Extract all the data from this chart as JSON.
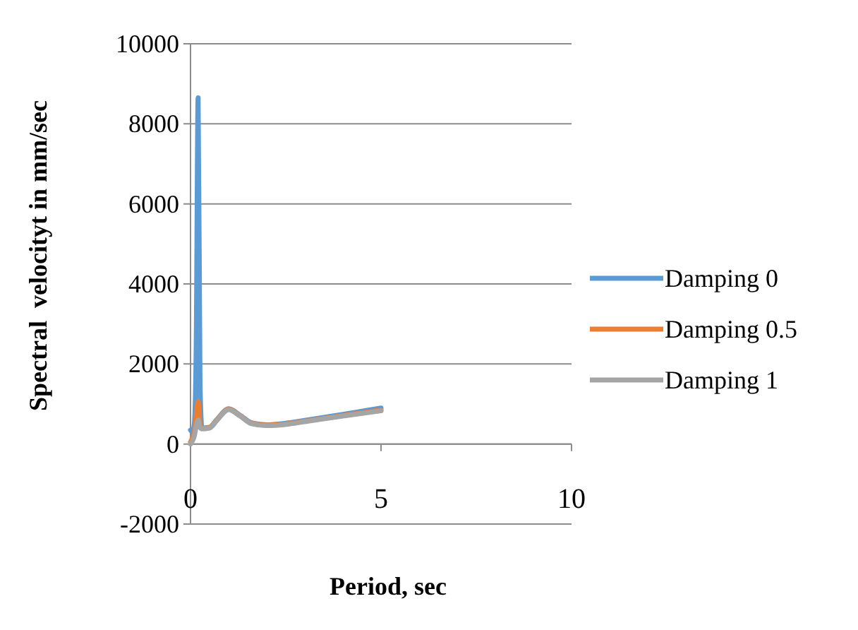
{
  "chart_data": {
    "type": "line",
    "xlabel": "Period, sec",
    "ylabel": "Spectral  velocityt in mm/sec",
    "xlim": [
      0,
      10
    ],
    "xticks": [
      0,
      5,
      10
    ],
    "ylim": [
      -2000,
      10000
    ],
    "yticks": [
      -2000,
      0,
      2000,
      4000,
      6000,
      8000,
      10000
    ],
    "grid": "y",
    "legend": "right",
    "marker": "none",
    "line_style": "solid",
    "series": [
      {
        "name": "Damping 0",
        "color": "#5b9bd5",
        "x": [
          0,
          0.05,
          0.1,
          0.15,
          0.2,
          0.25,
          0.3,
          0.5,
          0.7,
          1.0,
          1.3,
          1.6,
          2.0,
          2.5,
          3,
          4,
          5
        ],
        "values": [
          350,
          300,
          500,
          2500,
          8650,
          1500,
          400,
          420,
          620,
          880,
          720,
          530,
          480,
          520,
          590,
          740,
          900
        ]
      },
      {
        "name": "Damping 0.5",
        "color": "#ed7d31",
        "x": [
          0,
          0.05,
          0.1,
          0.15,
          0.2,
          0.25,
          0.3,
          0.5,
          0.7,
          1.0,
          1.3,
          1.6,
          2.0,
          2.5,
          3,
          4,
          5
        ],
        "values": [
          50,
          150,
          300,
          700,
          1060,
          500,
          390,
          410,
          610,
          870,
          710,
          520,
          470,
          500,
          570,
          710,
          850
        ]
      },
      {
        "name": "Damping 1",
        "color": "#a5a5a5",
        "x": [
          0,
          0.05,
          0.1,
          0.15,
          0.2,
          0.25,
          0.3,
          0.5,
          0.7,
          1.0,
          1.3,
          1.6,
          2.0,
          2.5,
          3,
          4,
          5
        ],
        "values": [
          0,
          80,
          200,
          450,
          600,
          420,
          380,
          400,
          600,
          860,
          700,
          510,
          460,
          490,
          560,
          700,
          830
        ]
      }
    ]
  }
}
